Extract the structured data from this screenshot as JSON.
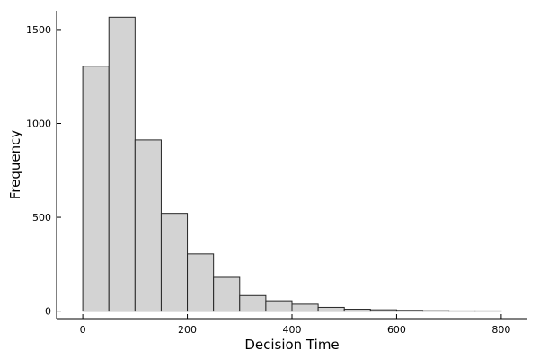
{
  "chart_data": {
    "type": "bar",
    "title": "",
    "xlabel": "Decision Time",
    "ylabel": "Frequency",
    "bin_edges": [
      0,
      50,
      100,
      150,
      200,
      250,
      300,
      350,
      400,
      450,
      500,
      550,
      600,
      650,
      700,
      750,
      800
    ],
    "values": [
      1305,
      1565,
      912,
      521,
      305,
      180,
      83,
      55,
      37,
      20,
      10,
      7,
      4,
      2,
      1,
      1
    ],
    "xlim": [
      -50,
      850
    ],
    "ylim": [
      -40,
      1600
    ],
    "xticks": [
      0,
      200,
      400,
      600,
      800
    ],
    "yticks": [
      0,
      500,
      1000,
      1500
    ],
    "grid": false,
    "legend": false
  }
}
